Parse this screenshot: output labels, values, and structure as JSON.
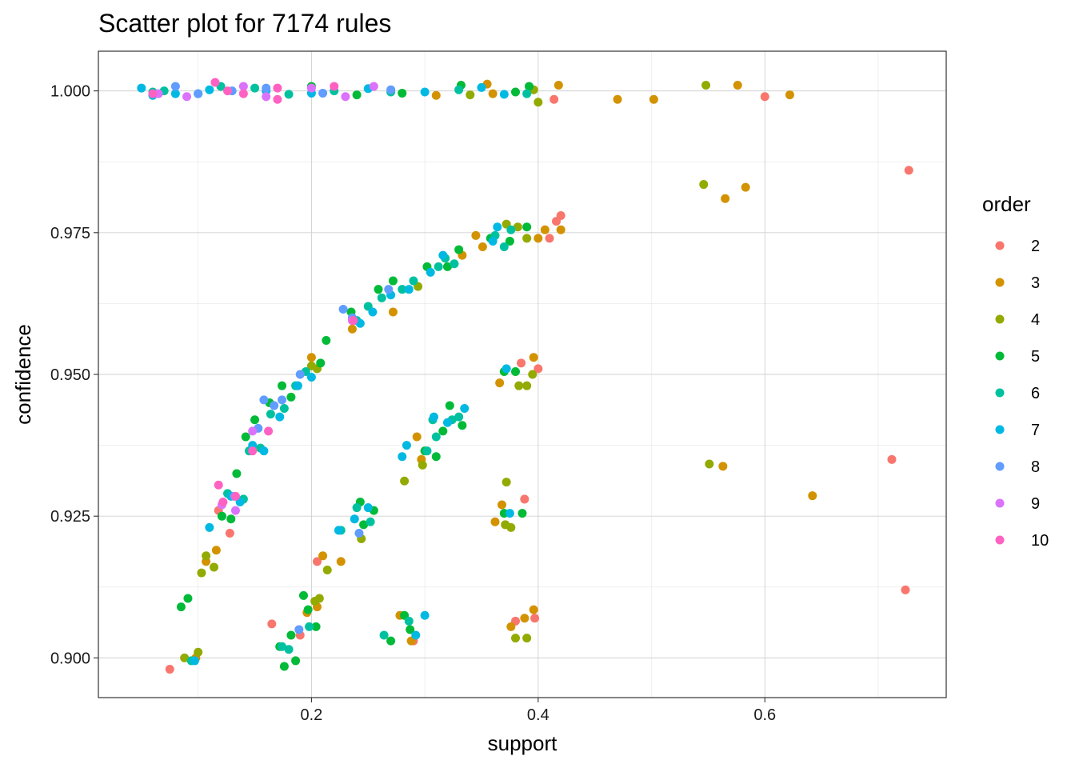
{
  "chart_data": {
    "type": "scatter",
    "title": "Scatter plot for 7174 rules",
    "xlabel": "support",
    "ylabel": "confidence",
    "xlim": [
      0.012,
      0.76
    ],
    "ylim": [
      0.893,
      1.007
    ],
    "x_ticks": [
      0.2,
      0.4,
      0.6
    ],
    "x_tick_labels": [
      "0.2",
      "0.4",
      "0.6"
    ],
    "y_ticks": [
      0.9,
      0.925,
      0.95,
      0.975,
      1.0
    ],
    "y_tick_labels": [
      "0.900",
      "0.925",
      "0.950",
      "0.975",
      "1.000"
    ],
    "grid": true,
    "legend": {
      "title": "order",
      "placement": "right",
      "entries": [
        {
          "label": "2",
          "color": "#F8766D"
        },
        {
          "label": "3",
          "color": "#D39200"
        },
        {
          "label": "4",
          "color": "#93AA00"
        },
        {
          "label": "5",
          "color": "#00BA38"
        },
        {
          "label": "6",
          "color": "#00C19F"
        },
        {
          "label": "7",
          "color": "#00B9E3"
        },
        {
          "label": "8",
          "color": "#619CFF"
        },
        {
          "label": "9",
          "color": "#DB72FB"
        },
        {
          "label": "10",
          "color": "#FF61C3"
        }
      ]
    },
    "series": [
      {
        "order": "2",
        "points": [
          [
            0.075,
            0.898
          ],
          [
            0.128,
            0.922
          ],
          [
            0.118,
            0.926
          ],
          [
            0.205,
            0.917
          ],
          [
            0.29,
            0.903
          ],
          [
            0.38,
            0.9065
          ],
          [
            0.397,
            0.907
          ],
          [
            0.388,
            0.928
          ],
          [
            0.385,
            0.952
          ],
          [
            0.4,
            0.951
          ],
          [
            0.41,
            0.974
          ],
          [
            0.416,
            0.977
          ],
          [
            0.42,
            0.978
          ],
          [
            0.6,
            0.999
          ],
          [
            0.727,
            0.986
          ],
          [
            0.712,
            0.935
          ],
          [
            0.724,
            0.912
          ],
          [
            0.414,
            0.9985
          ],
          [
            0.165,
            0.906
          ],
          [
            0.19,
            0.904
          ]
        ]
      },
      {
        "order": "3",
        "points": [
          [
            0.47,
            0.9985
          ],
          [
            0.502,
            0.9985
          ],
          [
            0.576,
            1.001
          ],
          [
            0.622,
            0.9993
          ],
          [
            0.565,
            0.981
          ],
          [
            0.583,
            0.983
          ],
          [
            0.563,
            0.9338
          ],
          [
            0.642,
            0.9286
          ],
          [
            0.21,
            0.918
          ],
          [
            0.226,
            0.917
          ],
          [
            0.396,
            0.9085
          ],
          [
            0.388,
            0.907
          ],
          [
            0.376,
            0.9055
          ],
          [
            0.362,
            0.924
          ],
          [
            0.368,
            0.927
          ],
          [
            0.396,
            0.953
          ],
          [
            0.366,
            0.9485
          ],
          [
            0.42,
            0.9755
          ],
          [
            0.406,
            0.9755
          ],
          [
            0.4,
            0.974
          ],
          [
            0.345,
            0.9745
          ],
          [
            0.351,
            0.9725
          ],
          [
            0.333,
            0.971
          ],
          [
            0.107,
            0.917
          ],
          [
            0.098,
            0.9
          ],
          [
            0.116,
            0.919
          ],
          [
            0.205,
            0.909
          ],
          [
            0.196,
            0.908
          ],
          [
            0.278,
            0.9075
          ],
          [
            0.288,
            0.903
          ],
          [
            0.297,
            0.935
          ],
          [
            0.293,
            0.939
          ],
          [
            0.236,
            0.958
          ],
          [
            0.272,
            0.961
          ],
          [
            0.2,
            0.953
          ],
          [
            0.418,
            1.001
          ],
          [
            0.36,
            0.9995
          ],
          [
            0.31,
            0.9992
          ],
          [
            0.355,
            1.0012
          ]
        ]
      },
      {
        "order": "4",
        "points": [
          [
            0.548,
            1.001
          ],
          [
            0.546,
            0.9835
          ],
          [
            0.551,
            0.9342
          ],
          [
            0.088,
            0.9
          ],
          [
            0.1,
            0.901
          ],
          [
            0.103,
            0.915
          ],
          [
            0.114,
            0.916
          ],
          [
            0.107,
            0.918
          ],
          [
            0.203,
            0.91
          ],
          [
            0.207,
            0.9105
          ],
          [
            0.214,
            0.9155
          ],
          [
            0.244,
            0.921
          ],
          [
            0.282,
            0.9312
          ],
          [
            0.298,
            0.934
          ],
          [
            0.38,
            0.9035
          ],
          [
            0.39,
            0.9035
          ],
          [
            0.372,
            0.931
          ],
          [
            0.376,
            0.923
          ],
          [
            0.371,
            0.9235
          ],
          [
            0.383,
            0.948
          ],
          [
            0.39,
            0.948
          ],
          [
            0.395,
            0.95
          ],
          [
            0.382,
            0.976
          ],
          [
            0.39,
            0.974
          ],
          [
            0.372,
            0.9765
          ],
          [
            0.396,
            1.0002
          ],
          [
            0.4,
            0.998
          ],
          [
            0.34,
            0.9993
          ],
          [
            0.205,
            0.951
          ],
          [
            0.2,
            0.9515
          ],
          [
            0.294,
            0.9655
          ]
        ]
      },
      {
        "order": "5",
        "points": [
          [
            0.085,
            0.909
          ],
          [
            0.091,
            0.9105
          ],
          [
            0.129,
            0.9245
          ],
          [
            0.134,
            0.9325
          ],
          [
            0.121,
            0.925
          ],
          [
            0.176,
            0.8985
          ],
          [
            0.186,
            0.8995
          ],
          [
            0.182,
            0.904
          ],
          [
            0.172,
            0.902
          ],
          [
            0.193,
            0.911
          ],
          [
            0.197,
            0.9085
          ],
          [
            0.204,
            0.9055
          ],
          [
            0.243,
            0.9275
          ],
          [
            0.246,
            0.9235
          ],
          [
            0.255,
            0.926
          ],
          [
            0.27,
            0.903
          ],
          [
            0.287,
            0.905
          ],
          [
            0.282,
            0.9075
          ],
          [
            0.3,
            0.9365
          ],
          [
            0.31,
            0.9355
          ],
          [
            0.322,
            0.9445
          ],
          [
            0.316,
            0.94
          ],
          [
            0.333,
            0.941
          ],
          [
            0.37,
            0.9255
          ],
          [
            0.386,
            0.9255
          ],
          [
            0.37,
            0.9505
          ],
          [
            0.38,
            0.9505
          ],
          [
            0.358,
            0.974
          ],
          [
            0.375,
            0.9735
          ],
          [
            0.39,
            0.976
          ],
          [
            0.32,
            0.969
          ],
          [
            0.33,
            0.972
          ],
          [
            0.302,
            0.969
          ],
          [
            0.259,
            0.965
          ],
          [
            0.272,
            0.9665
          ],
          [
            0.235,
            0.961
          ],
          [
            0.213,
            0.956
          ],
          [
            0.208,
            0.952
          ],
          [
            0.163,
            0.945
          ],
          [
            0.15,
            0.942
          ],
          [
            0.174,
            0.948
          ],
          [
            0.182,
            0.946
          ],
          [
            0.142,
            0.939
          ],
          [
            0.38,
            0.9998
          ],
          [
            0.392,
            1.0008
          ],
          [
            0.332,
            1.001
          ],
          [
            0.28,
            0.9996
          ],
          [
            0.24,
            0.9993
          ],
          [
            0.2,
            1.0008
          ]
        ]
      },
      {
        "order": "6",
        "points": [
          [
            0.094,
            0.8995
          ],
          [
            0.174,
            0.902
          ],
          [
            0.18,
            0.9015
          ],
          [
            0.198,
            0.9055
          ],
          [
            0.226,
            0.9225
          ],
          [
            0.24,
            0.9265
          ],
          [
            0.252,
            0.924
          ],
          [
            0.264,
            0.904
          ],
          [
            0.286,
            0.9065
          ],
          [
            0.307,
            0.942
          ],
          [
            0.324,
            0.942
          ],
          [
            0.33,
            0.9425
          ],
          [
            0.31,
            0.939
          ],
          [
            0.302,
            0.9365
          ],
          [
            0.126,
            0.929
          ],
          [
            0.14,
            0.928
          ],
          [
            0.145,
            0.9365
          ],
          [
            0.155,
            0.937
          ],
          [
            0.164,
            0.943
          ],
          [
            0.176,
            0.944
          ],
          [
            0.186,
            0.948
          ],
          [
            0.195,
            0.9505
          ],
          [
            0.24,
            0.9595
          ],
          [
            0.25,
            0.962
          ],
          [
            0.262,
            0.9635
          ],
          [
            0.28,
            0.965
          ],
          [
            0.29,
            0.9665
          ],
          [
            0.312,
            0.969
          ],
          [
            0.318,
            0.9705
          ],
          [
            0.326,
            0.9695
          ],
          [
            0.362,
            0.9745
          ],
          [
            0.37,
            0.9725
          ],
          [
            0.376,
            0.9755
          ],
          [
            0.07,
            1.0
          ],
          [
            0.1,
            0.9995
          ],
          [
            0.15,
            1.0005
          ],
          [
            0.22,
            1.0
          ],
          [
            0.27,
            0.9998
          ],
          [
            0.33,
            1.0002
          ],
          [
            0.39,
            0.9995
          ],
          [
            0.06,
            0.9998
          ],
          [
            0.12,
            1.0008
          ],
          [
            0.18,
            0.9994
          ]
        ]
      },
      {
        "order": "7",
        "points": [
          [
            0.097,
            0.8995
          ],
          [
            0.11,
            0.923
          ],
          [
            0.129,
            0.9285
          ],
          [
            0.137,
            0.9275
          ],
          [
            0.148,
            0.9375
          ],
          [
            0.158,
            0.9365
          ],
          [
            0.172,
            0.9425
          ],
          [
            0.188,
            0.948
          ],
          [
            0.2,
            0.9495
          ],
          [
            0.224,
            0.9225
          ],
          [
            0.238,
            0.9245
          ],
          [
            0.25,
            0.9265
          ],
          [
            0.28,
            0.9355
          ],
          [
            0.284,
            0.9375
          ],
          [
            0.292,
            0.904
          ],
          [
            0.3,
            0.9075
          ],
          [
            0.308,
            0.9425
          ],
          [
            0.32,
            0.9415
          ],
          [
            0.335,
            0.944
          ],
          [
            0.372,
            0.951
          ],
          [
            0.375,
            0.9255
          ],
          [
            0.243,
            0.959
          ],
          [
            0.254,
            0.961
          ],
          [
            0.27,
            0.964
          ],
          [
            0.286,
            0.965
          ],
          [
            0.305,
            0.968
          ],
          [
            0.316,
            0.971
          ],
          [
            0.36,
            0.9735
          ],
          [
            0.364,
            0.976
          ],
          [
            0.05,
            1.0005
          ],
          [
            0.08,
            0.9995
          ],
          [
            0.11,
            1.0002
          ],
          [
            0.16,
            1.0
          ],
          [
            0.2,
            0.9996
          ],
          [
            0.25,
            1.0004
          ],
          [
            0.3,
            0.9998
          ],
          [
            0.35,
            1.0006
          ],
          [
            0.37,
            0.9994
          ],
          [
            0.06,
            0.9992
          ]
        ]
      },
      {
        "order": "8",
        "points": [
          [
            0.132,
            0.9285
          ],
          [
            0.153,
            0.9405
          ],
          [
            0.158,
            0.9455
          ],
          [
            0.167,
            0.9445
          ],
          [
            0.174,
            0.9455
          ],
          [
            0.19,
            0.95
          ],
          [
            0.228,
            0.9615
          ],
          [
            0.236,
            0.96
          ],
          [
            0.242,
            0.922
          ],
          [
            0.268,
            0.965
          ],
          [
            0.189,
            0.905
          ],
          [
            0.08,
            1.0008
          ],
          [
            0.1,
            0.9995
          ],
          [
            0.13,
            1.0
          ],
          [
            0.16,
            1.0005
          ],
          [
            0.21,
            0.9996
          ],
          [
            0.27,
            1.0002
          ]
        ]
      },
      {
        "order": "9",
        "points": [
          [
            0.121,
            0.927
          ],
          [
            0.133,
            0.926
          ],
          [
            0.148,
            0.94
          ],
          [
            0.236,
            0.9595
          ],
          [
            0.065,
            0.9995
          ],
          [
            0.09,
            0.999
          ],
          [
            0.14,
            1.0008
          ],
          [
            0.16,
            0.999
          ],
          [
            0.2,
            1.0005
          ],
          [
            0.23,
            0.999
          ],
          [
            0.255,
            1.0008
          ]
        ]
      },
      {
        "order": "10",
        "points": [
          [
            0.118,
            0.9305
          ],
          [
            0.122,
            0.9275
          ],
          [
            0.133,
            0.9285
          ],
          [
            0.148,
            0.9365
          ],
          [
            0.162,
            0.94
          ],
          [
            0.237,
            0.9595
          ],
          [
            0.115,
            1.0015
          ],
          [
            0.126,
            1.0
          ],
          [
            0.14,
            0.9995
          ],
          [
            0.17,
            1.0005
          ],
          [
            0.22,
            1.0008
          ],
          [
            0.06,
            0.9995
          ],
          [
            0.17,
            0.9985
          ]
        ]
      }
    ]
  }
}
